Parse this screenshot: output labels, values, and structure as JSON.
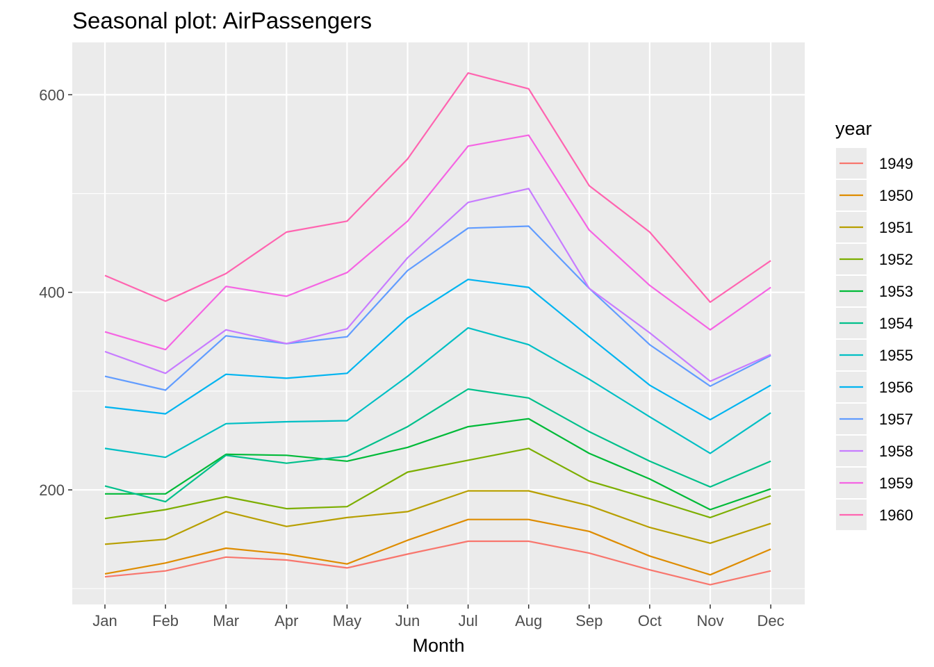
{
  "chart_data": {
    "type": "line",
    "title": "Seasonal plot: AirPassengers",
    "xlabel": "Month",
    "ylabel": "",
    "categories": [
      "Jan",
      "Feb",
      "Mar",
      "Apr",
      "May",
      "Jun",
      "Jul",
      "Aug",
      "Sep",
      "Oct",
      "Nov",
      "Dec"
    ],
    "yticks": [
      200,
      400,
      600
    ],
    "ylim": [
      84,
      653
    ],
    "grid": true,
    "legend": {
      "title": "year",
      "position": "right"
    },
    "series": [
      {
        "name": "1949",
        "color": "#F8766D",
        "values": [
          112,
          118,
          132,
          129,
          121,
          135,
          148,
          148,
          136,
          119,
          104,
          118
        ]
      },
      {
        "name": "1950",
        "color": "#DE8C00",
        "values": [
          115,
          126,
          141,
          135,
          125,
          149,
          170,
          170,
          158,
          133,
          114,
          140
        ]
      },
      {
        "name": "1951",
        "color": "#B79F00",
        "values": [
          145,
          150,
          178,
          163,
          172,
          178,
          199,
          199,
          184,
          162,
          146,
          166
        ]
      },
      {
        "name": "1952",
        "color": "#7CAE00",
        "values": [
          171,
          180,
          193,
          181,
          183,
          218,
          230,
          242,
          209,
          191,
          172,
          194
        ]
      },
      {
        "name": "1953",
        "color": "#00BA38",
        "values": [
          196,
          196,
          236,
          235,
          229,
          243,
          264,
          272,
          237,
          211,
          180,
          201
        ]
      },
      {
        "name": "1954",
        "color": "#00C08B",
        "values": [
          204,
          188,
          235,
          227,
          234,
          264,
          302,
          293,
          259,
          229,
          203,
          229
        ]
      },
      {
        "name": "1955",
        "color": "#00BFC4",
        "values": [
          242,
          233,
          267,
          269,
          270,
          315,
          364,
          347,
          312,
          274,
          237,
          278
        ]
      },
      {
        "name": "1956",
        "color": "#00B4F0",
        "values": [
          284,
          277,
          317,
          313,
          318,
          374,
          413,
          405,
          355,
          306,
          271,
          306
        ]
      },
      {
        "name": "1957",
        "color": "#619CFF",
        "values": [
          315,
          301,
          356,
          348,
          355,
          422,
          465,
          467,
          404,
          347,
          305,
          336
        ]
      },
      {
        "name": "1958",
        "color": "#C77CFF",
        "values": [
          340,
          318,
          362,
          348,
          363,
          435,
          491,
          505,
          404,
          359,
          310,
          337
        ]
      },
      {
        "name": "1959",
        "color": "#F564E3",
        "values": [
          360,
          342,
          406,
          396,
          420,
          472,
          548,
          559,
          463,
          407,
          362,
          405
        ]
      },
      {
        "name": "1960",
        "color": "#FF64B0",
        "values": [
          417,
          391,
          419,
          461,
          472,
          535,
          622,
          606,
          508,
          461,
          390,
          432
        ]
      }
    ]
  }
}
